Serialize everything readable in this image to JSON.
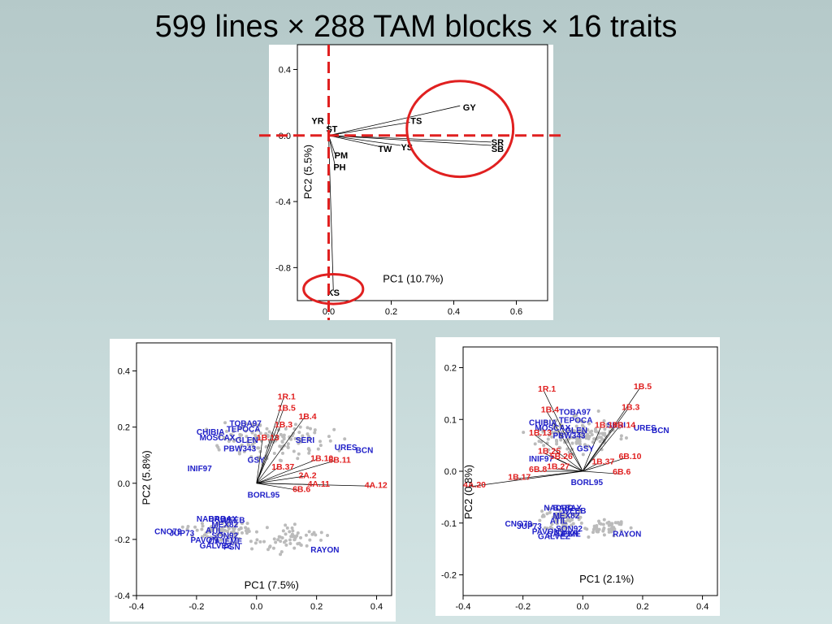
{
  "slide": {
    "title": "599 lines × 288 TAM blocks × 16 traits"
  },
  "chart_data": [
    {
      "type": "biplot",
      "xlabel": "PC1 (10.7%)",
      "ylabel": "PC2 (5.5%)",
      "xlim": [
        -0.1,
        0.7
      ],
      "ylim": [
        -1.0,
        0.55
      ],
      "xticks": [
        0.0,
        0.2,
        0.4,
        0.6
      ],
      "yticks": [
        -0.8,
        -0.4,
        0.0,
        0.4
      ],
      "tick_labels_x": [
        "0.0",
        "0.2",
        "0.4",
        "0.6"
      ],
      "tick_labels_y": [
        "-0.8",
        "-0.4",
        "0.0",
        "0.4"
      ],
      "vectors": [
        {
          "label": "YR",
          "x": 0.0,
          "y": 0.08,
          "lx": -0.035,
          "ly": 0.09
        },
        {
          "label": "ST",
          "x": 0.01,
          "y": 0.04,
          "lx": 0.01,
          "ly": 0.04
        },
        {
          "label": "GY",
          "x": 0.42,
          "y": 0.18,
          "lx": 0.45,
          "ly": 0.17
        },
        {
          "label": "TS",
          "x": 0.26,
          "y": 0.08,
          "lx": 0.28,
          "ly": 0.09
        },
        {
          "label": "SR",
          "x": 0.52,
          "y": -0.04,
          "lx": 0.54,
          "ly": -0.04
        },
        {
          "label": "SB",
          "x": 0.52,
          "y": -0.06,
          "lx": 0.54,
          "ly": -0.08
        },
        {
          "label": "YS",
          "x": 0.23,
          "y": -0.06,
          "lx": 0.25,
          "ly": -0.07
        },
        {
          "label": "TW",
          "x": 0.17,
          "y": -0.07,
          "lx": 0.18,
          "ly": -0.08
        },
        {
          "label": "PM",
          "x": 0.02,
          "y": -0.11,
          "lx": 0.04,
          "ly": -0.12
        },
        {
          "label": "PH",
          "x": 0.02,
          "y": -0.18,
          "lx": 0.035,
          "ly": -0.19
        },
        {
          "label": "KS",
          "x": 0.015,
          "y": -0.94,
          "lx": 0.015,
          "ly": -0.95
        }
      ],
      "dashed_lines": {
        "x": 0.0,
        "y": 0.0,
        "color": "#e02020"
      },
      "circles": [
        {
          "cx": 0.42,
          "cy": 0.04,
          "rx": 0.17,
          "ry": 0.29
        },
        {
          "cx": 0.015,
          "cy": -0.93,
          "rx": 0.095,
          "ry": 0.09
        }
      ]
    },
    {
      "type": "biplot",
      "xlabel": "PC1 (7.5%)",
      "ylabel": "PC2 (5.8%)",
      "xlim": [
        -0.4,
        0.45
      ],
      "ylim": [
        -0.4,
        0.5
      ],
      "xticks": [
        -0.4,
        -0.2,
        0.0,
        0.2,
        0.4
      ],
      "yticks": [
        -0.4,
        -0.2,
        0.0,
        0.2,
        0.4
      ],
      "tick_labels_x": [
        "-0.4",
        "-0.2",
        "0.0",
        "0.2",
        "0.4"
      ],
      "tick_labels_y": [
        "-0.4",
        "-0.2",
        "0.0",
        "0.2",
        "0.4"
      ],
      "origin": [
        0.0,
        0.0
      ],
      "red_labels": [
        {
          "t": "1R.1",
          "x": 0.07,
          "y": 0.31
        },
        {
          "t": "1B.5",
          "x": 0.07,
          "y": 0.27
        },
        {
          "t": "1B.4",
          "x": 0.14,
          "y": 0.24
        },
        {
          "t": "1B.3",
          "x": 0.06,
          "y": 0.21
        },
        {
          "t": "1B.13",
          "x": 0.0,
          "y": 0.165
        },
        {
          "t": "1B.10",
          "x": 0.18,
          "y": 0.09
        },
        {
          "t": "6B.11",
          "x": 0.24,
          "y": 0.085
        },
        {
          "t": "1B.37",
          "x": 0.05,
          "y": 0.06
        },
        {
          "t": "2A.2",
          "x": 0.14,
          "y": 0.03
        },
        {
          "t": "4A.11",
          "x": 0.17,
          "y": 0.0
        },
        {
          "t": "4A.12",
          "x": 0.36,
          "y": -0.005
        },
        {
          "t": "6B.6",
          "x": 0.12,
          "y": -0.02
        }
      ],
      "blue_labels": [
        {
          "t": "TOBA97",
          "x": -0.09,
          "y": 0.215
        },
        {
          "t": "TEPOCA",
          "x": -0.1,
          "y": 0.195
        },
        {
          "t": "CHIBIA",
          "x": -0.2,
          "y": 0.185
        },
        {
          "t": "MOSCAX",
          "x": -0.19,
          "y": 0.165
        },
        {
          "t": "GLEN",
          "x": -0.07,
          "y": 0.155
        },
        {
          "t": "PBW343",
          "x": -0.11,
          "y": 0.125
        },
        {
          "t": "SERI",
          "x": 0.13,
          "y": 0.155
        },
        {
          "t": "URES",
          "x": 0.26,
          "y": 0.13
        },
        {
          "t": "BCN",
          "x": 0.33,
          "y": 0.12
        },
        {
          "t": "GSY",
          "x": -0.03,
          "y": 0.085
        },
        {
          "t": "INIF97",
          "x": -0.23,
          "y": 0.055
        },
        {
          "t": "BORL95",
          "x": -0.03,
          "y": -0.04
        },
        {
          "t": "NADRO",
          "x": -0.2,
          "y": -0.125
        },
        {
          "t": "BABAX",
          "x": -0.16,
          "y": -0.125
        },
        {
          "t": "WEEB",
          "x": -0.12,
          "y": -0.13
        },
        {
          "t": "MEX82",
          "x": -0.15,
          "y": -0.145
        },
        {
          "t": "ATIL",
          "x": -0.17,
          "y": -0.165
        },
        {
          "t": "CNO79",
          "x": -0.34,
          "y": -0.17
        },
        {
          "t": "JUP73",
          "x": -0.29,
          "y": -0.175
        },
        {
          "t": "SON92",
          "x": -0.15,
          "y": -0.185
        },
        {
          "t": "PAVON",
          "x": -0.22,
          "y": -0.2
        },
        {
          "t": "CAJEME",
          "x": -0.16,
          "y": -0.205
        },
        {
          "t": "GALVEZ",
          "x": -0.19,
          "y": -0.22
        },
        {
          "t": "PSN",
          "x": -0.11,
          "y": -0.225
        },
        {
          "t": "RAYON",
          "x": 0.18,
          "y": -0.235
        }
      ]
    },
    {
      "type": "biplot",
      "xlabel": "PC1 (2.1%)",
      "ylabel": "PC2 (0.8%)",
      "xlim": [
        -0.4,
        0.45
      ],
      "ylim": [
        -0.24,
        0.24
      ],
      "xticks": [
        -0.4,
        -0.2,
        0.0,
        0.2,
        0.4
      ],
      "yticks": [
        -0.2,
        -0.1,
        0.0,
        0.1,
        0.2
      ],
      "tick_labels_x": [
        "-0.4",
        "-0.2",
        "0.0",
        "0.2",
        "0.4"
      ],
      "tick_labels_y": [
        "-0.2",
        "-0.1",
        "0.0",
        "0.1",
        "0.2"
      ],
      "origin": [
        0.0,
        0.0
      ],
      "red_labels": [
        {
          "t": "1R.1",
          "x": -0.15,
          "y": 0.16
        },
        {
          "t": "1B.5",
          "x": 0.17,
          "y": 0.165
        },
        {
          "t": "1B.4",
          "x": -0.14,
          "y": 0.12
        },
        {
          "t": "1B.3",
          "x": 0.13,
          "y": 0.125
        },
        {
          "t": "1B.13",
          "x": -0.18,
          "y": 0.075
        },
        {
          "t": "1B.10",
          "x": 0.04,
          "y": 0.09
        },
        {
          "t": "5B.14",
          "x": 0.1,
          "y": 0.09
        },
        {
          "t": "1B.25",
          "x": -0.15,
          "y": 0.04
        },
        {
          "t": "5B.26",
          "x": -0.11,
          "y": 0.03
        },
        {
          "t": "6B.10",
          "x": 0.12,
          "y": 0.03
        },
        {
          "t": "1B.37",
          "x": 0.03,
          "y": 0.02
        },
        {
          "t": "6B.8",
          "x": -0.18,
          "y": 0.005
        },
        {
          "t": "6B.6",
          "x": 0.1,
          "y": 0.0
        },
        {
          "t": "1B.27",
          "x": -0.12,
          "y": 0.01
        },
        {
          "t": "1B.17",
          "x": -0.25,
          "y": -0.01
        },
        {
          "t": "4A.20",
          "x": -0.4,
          "y": -0.025
        }
      ],
      "blue_labels": [
        {
          "t": "TOBA97",
          "x": -0.08,
          "y": 0.115
        },
        {
          "t": "TEPOCA",
          "x": -0.08,
          "y": 0.1
        },
        {
          "t": "CHIBIA",
          "x": -0.18,
          "y": 0.095
        },
        {
          "t": "MOSCAX",
          "x": -0.16,
          "y": 0.085
        },
        {
          "t": "GLEN",
          "x": -0.06,
          "y": 0.08
        },
        {
          "t": "PBW343",
          "x": -0.1,
          "y": 0.07
        },
        {
          "t": "SERI",
          "x": 0.08,
          "y": 0.09
        },
        {
          "t": "URES",
          "x": 0.17,
          "y": 0.085
        },
        {
          "t": "BCN",
          "x": 0.23,
          "y": 0.08
        },
        {
          "t": "GSY",
          "x": -0.02,
          "y": 0.045
        },
        {
          "t": "INIF97",
          "x": -0.18,
          "y": 0.025
        },
        {
          "t": "BORL95",
          "x": -0.04,
          "y": -0.02
        },
        {
          "t": "NADRO",
          "x": -0.13,
          "y": -0.07
        },
        {
          "t": "BABAX",
          "x": -0.1,
          "y": -0.07
        },
        {
          "t": "WEEB",
          "x": -0.07,
          "y": -0.075
        },
        {
          "t": "MEX82",
          "x": -0.1,
          "y": -0.085
        },
        {
          "t": "ATIL",
          "x": -0.11,
          "y": -0.095
        },
        {
          "t": "CNO79",
          "x": -0.26,
          "y": -0.1
        },
        {
          "t": "JUP73",
          "x": -0.22,
          "y": -0.105
        },
        {
          "t": "SON92",
          "x": -0.09,
          "y": -0.11
        },
        {
          "t": "PAVON",
          "x": -0.17,
          "y": -0.115
        },
        {
          "t": "CAJEME",
          "x": -0.12,
          "y": -0.12
        },
        {
          "t": "GALVEZ",
          "x": -0.15,
          "y": -0.125
        },
        {
          "t": "PSN",
          "x": -0.07,
          "y": -0.12
        },
        {
          "t": "RAYON",
          "x": 0.1,
          "y": -0.12
        }
      ]
    }
  ]
}
